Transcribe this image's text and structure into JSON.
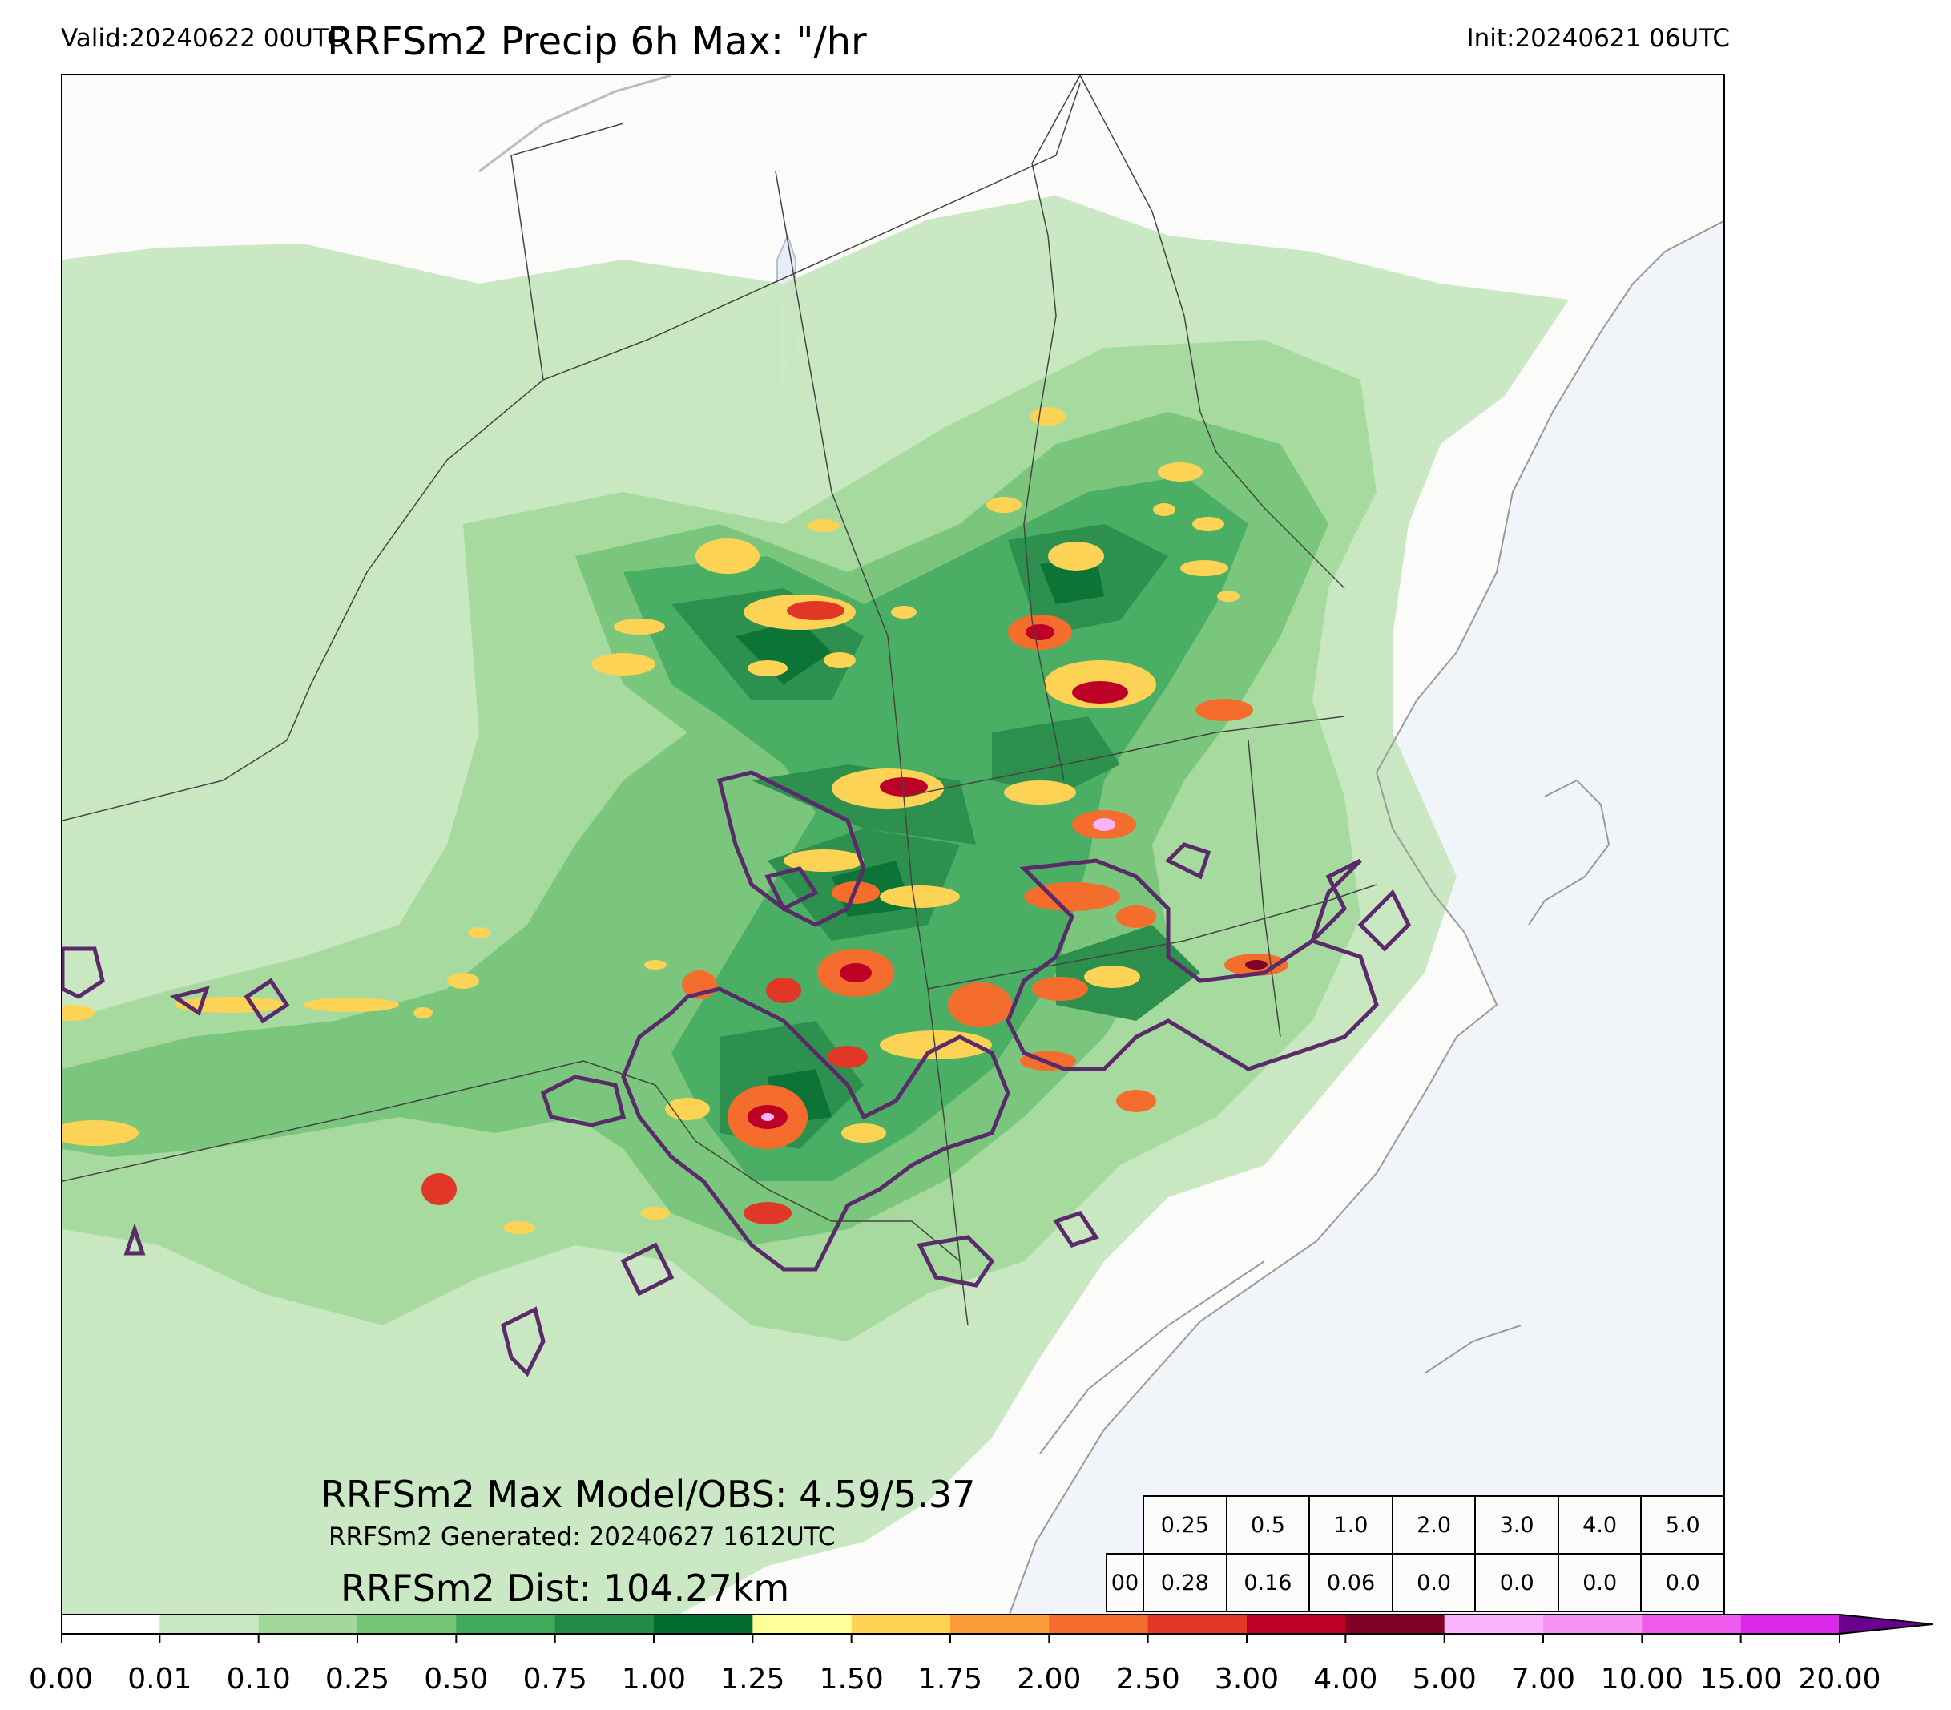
{
  "header": {
    "valid": "Valid:20240622 00UTC",
    "title": "RRFSm2 Precip 6h Max: \"/hr",
    "init": "Init:20240621 06UTC"
  },
  "annotations": {
    "max_model_obs": "RRFSm2 Max Model/OBS: 4.59/5.37",
    "generated": "RRFSm2 Generated: 20240627 1612UTC",
    "distance": "RRFSm2 Dist: 104.27km"
  },
  "stats_table": {
    "thresholds": [
      "0.25",
      "0.5",
      "1.0",
      "2.0",
      "3.0",
      "4.0",
      "5.0"
    ],
    "row_label": "00",
    "values": [
      "0.28",
      "0.16",
      "0.06",
      "0.0",
      "0.0",
      "0.0",
      "0.0"
    ]
  },
  "colorbar": {
    "labels": [
      "0.00",
      "0.01",
      "0.10",
      "0.25",
      "0.50",
      "0.75",
      "1.00",
      "1.25",
      "1.50",
      "1.75",
      "2.00",
      "2.50",
      "3.00",
      "4.00",
      "5.00",
      "7.00",
      "10.00",
      "15.00",
      "20.00"
    ],
    "colors": [
      "#ffffff",
      "#c7e7c0",
      "#a2d99a",
      "#74c476",
      "#41ab5d",
      "#238b45",
      "#006d2c",
      "#ffff99",
      "#fdd355",
      "#fc9d3a",
      "#f46d2c",
      "#e03726",
      "#bd0026",
      "#800026",
      "#fbb4fb",
      "#f792f5",
      "#ef5ced",
      "#d928e7",
      "#9f0ec5"
    ],
    "extend_color": "#6a008e"
  },
  "map_colors": {
    "land": "#fbfbf9",
    "ocean": "#f1f5fa",
    "obs_contour": "#5a2a6a"
  }
}
